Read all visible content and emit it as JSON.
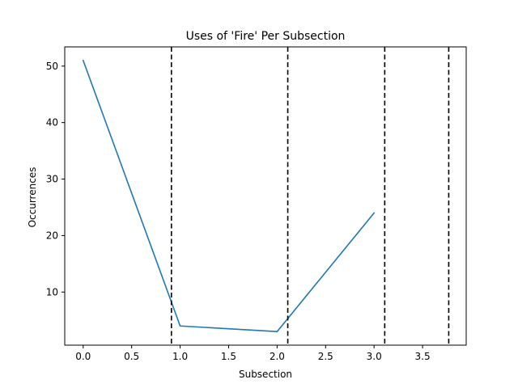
{
  "chart_data": {
    "type": "line",
    "title": "Uses of 'Fire' Per Subsection",
    "xlabel": "Subsection",
    "ylabel": "Occurrences",
    "xlim": [
      -0.19,
      3.95
    ],
    "ylim": [
      0.6,
      53.4
    ],
    "xticks": [
      0.0,
      0.5,
      1.0,
      1.5,
      2.0,
      2.5,
      3.0,
      3.5
    ],
    "xtick_labels": [
      "0.0",
      "0.5",
      "1.0",
      "1.5",
      "2.0",
      "2.5",
      "3.0",
      "3.5"
    ],
    "yticks": [
      10,
      20,
      30,
      40,
      50
    ],
    "ytick_labels": [
      "10",
      "20",
      "30",
      "40",
      "50"
    ],
    "grid": false,
    "series": [
      {
        "x": [
          0,
          1,
          2,
          3
        ],
        "y": [
          51,
          4,
          3,
          24
        ],
        "color": "#1f77b4"
      }
    ],
    "vlines": [
      {
        "x": 0.91,
        "style": "dashed",
        "color": "#000000"
      },
      {
        "x": 2.11,
        "style": "dashed",
        "color": "#000000"
      },
      {
        "x": 3.11,
        "style": "dashed",
        "color": "#000000"
      },
      {
        "x": 3.77,
        "style": "dashed",
        "color": "#000000"
      }
    ]
  }
}
